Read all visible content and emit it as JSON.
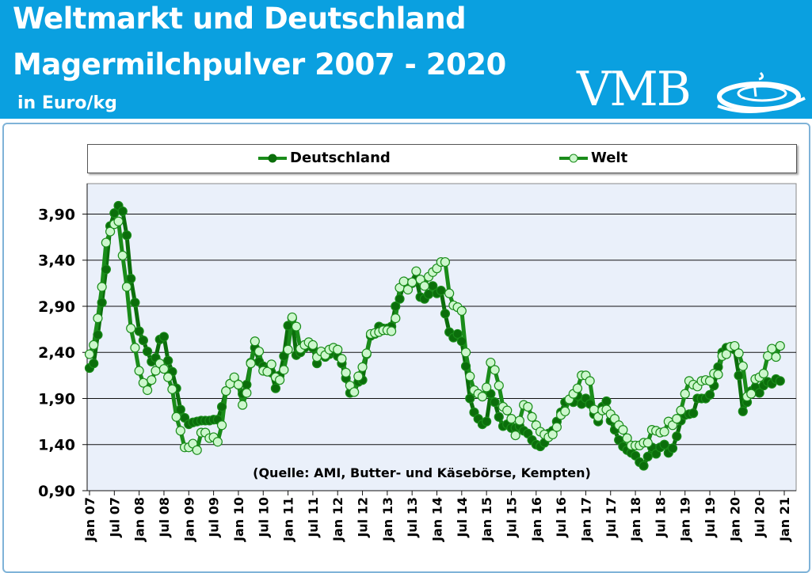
{
  "header": {
    "title_line1": "Weltmarkt und Deutschland",
    "title_line2": "Magermilchpulver 2007 - 2020",
    "unit": "in Euro/kg",
    "logo_text": "VMB",
    "background_color": "#0aa0e0"
  },
  "source_note": "(Quelle: AMI, Butter- und Käsebörse, Kempten)",
  "chart_data": {
    "type": "line",
    "title": "",
    "xlabel": "",
    "ylabel": "",
    "ylim": [
      0.9,
      4.23
    ],
    "yticks": [
      "0,90",
      "1,40",
      "1,90",
      "2,40",
      "2,90",
      "3,40",
      "3,90"
    ],
    "ytick_values": [
      0.9,
      1.4,
      1.9,
      2.4,
      2.9,
      3.4,
      3.9
    ],
    "x_range": [
      "Jan 07",
      "Dec 20"
    ],
    "xticks": [
      "Jan 07",
      "Jul 07",
      "Jan 08",
      "Jul 08",
      "Jan 09",
      "Jul 09",
      "Jan 10",
      "Jul 10",
      "Jan 11",
      "Jul 11",
      "Jan 12",
      "Jul 12",
      "Jan 13",
      "Jul 13",
      "Jan 14",
      "Jul 14",
      "Jan 15",
      "Jul 15",
      "Jan 16",
      "Jul 16",
      "Jan 17",
      "Jul 17",
      "Jan 18",
      "Jul 18",
      "Jan 19",
      "Jul 19",
      "Jan 20",
      "Jul 20",
      "Jan 21"
    ],
    "grid": true,
    "legend_position": "top",
    "frequency": "monthly",
    "series": [
      {
        "name": "Deutschland",
        "color": "#0b6e0b",
        "marker_fill": "#0b6e0b",
        "values": [
          2.23,
          2.28,
          2.59,
          2.94,
          3.3,
          3.77,
          3.91,
          3.99,
          3.93,
          3.67,
          3.2,
          2.94,
          2.63,
          2.53,
          2.41,
          2.3,
          2.34,
          2.54,
          2.57,
          2.31,
          2.19,
          2.01,
          1.78,
          1.69,
          1.62,
          1.64,
          1.65,
          1.66,
          1.66,
          1.66,
          1.67,
          1.67,
          1.81,
          1.98,
          2.06,
          2.1,
          2.05,
          1.95,
          2.05,
          2.29,
          2.45,
          2.3,
          2.25,
          2.22,
          2.18,
          2.01,
          2.15,
          2.36,
          2.69,
          2.77,
          2.37,
          2.4,
          2.45,
          2.5,
          2.45,
          2.28,
          2.4,
          2.35,
          2.38,
          2.4,
          2.36,
          2.28,
          2.12,
          1.96,
          1.97,
          2.08,
          2.1,
          2.38,
          2.58,
          2.6,
          2.68,
          2.66,
          2.66,
          2.68,
          2.9,
          2.98,
          3.16,
          3.15,
          3.15,
          3.2,
          3.0,
          2.98,
          3.03,
          3.12,
          3.04,
          3.07,
          2.82,
          2.62,
          2.56,
          2.6,
          2.52,
          2.25,
          1.9,
          1.75,
          1.68,
          1.62,
          1.65,
          1.95,
          1.86,
          1.7,
          1.6,
          1.62,
          1.58,
          1.58,
          1.6,
          1.55,
          1.52,
          1.45,
          1.4,
          1.38,
          1.42,
          1.52,
          1.55,
          1.65,
          1.75,
          1.86,
          1.88,
          1.86,
          1.93,
          1.84,
          1.9,
          1.84,
          1.73,
          1.65,
          1.81,
          1.87,
          1.66,
          1.56,
          1.45,
          1.38,
          1.34,
          1.31,
          1.28,
          1.21,
          1.17,
          1.27,
          1.37,
          1.3,
          1.37,
          1.4,
          1.31,
          1.36,
          1.49,
          1.66,
          1.72,
          1.73,
          1.74,
          1.9,
          1.9,
          1.9,
          1.94,
          2.04,
          2.24,
          2.4,
          2.45,
          2.46,
          2.43,
          2.15,
          1.76,
          1.86,
          1.98,
          2.02,
          1.96,
          2.04,
          2.08,
          2.06,
          2.11,
          2.09
        ]
      },
      {
        "name": "Welt",
        "color": "#1a8c1a",
        "marker_fill": "#ccf7cc",
        "values": [
          2.38,
          2.48,
          2.77,
          3.11,
          3.59,
          3.71,
          3.79,
          3.82,
          3.45,
          3.11,
          2.66,
          2.45,
          2.2,
          2.07,
          1.99,
          2.1,
          2.2,
          2.28,
          2.22,
          2.13,
          2.0,
          1.7,
          1.55,
          1.37,
          1.37,
          1.41,
          1.34,
          1.53,
          1.53,
          1.47,
          1.48,
          1.43,
          1.61,
          1.98,
          2.06,
          2.13,
          2.05,
          1.83,
          1.96,
          2.28,
          2.52,
          2.41,
          2.2,
          2.19,
          2.27,
          2.13,
          2.1,
          2.21,
          2.43,
          2.78,
          2.68,
          2.44,
          2.48,
          2.51,
          2.48,
          2.35,
          2.41,
          2.37,
          2.43,
          2.45,
          2.43,
          2.33,
          2.18,
          2.04,
          1.97,
          2.14,
          2.24,
          2.39,
          2.6,
          2.61,
          2.62,
          2.64,
          2.64,
          2.63,
          2.77,
          3.1,
          3.17,
          3.08,
          3.16,
          3.28,
          3.19,
          3.12,
          3.22,
          3.27,
          3.31,
          3.38,
          3.38,
          3.04,
          2.91,
          2.89,
          2.85,
          2.4,
          2.14,
          1.99,
          1.95,
          1.92,
          2.02,
          2.29,
          2.21,
          2.04,
          1.81,
          1.77,
          1.68,
          1.5,
          1.66,
          1.83,
          1.81,
          1.7,
          1.61,
          1.54,
          1.51,
          1.48,
          1.51,
          1.59,
          1.72,
          1.76,
          1.89,
          1.95,
          2.01,
          2.15,
          2.15,
          2.09,
          1.78,
          1.7,
          1.77,
          1.78,
          1.73,
          1.68,
          1.61,
          1.56,
          1.47,
          1.39,
          1.39,
          1.39,
          1.42,
          1.42,
          1.56,
          1.55,
          1.53,
          1.54,
          1.65,
          1.61,
          1.68,
          1.77,
          1.95,
          2.09,
          2.05,
          2.03,
          2.09,
          2.1,
          2.09,
          2.17,
          2.16,
          2.36,
          2.38,
          2.46,
          2.47,
          2.39,
          2.25,
          1.92,
          1.95,
          2.11,
          2.13,
          2.17,
          2.36,
          2.44,
          2.35,
          2.47
        ]
      }
    ]
  }
}
